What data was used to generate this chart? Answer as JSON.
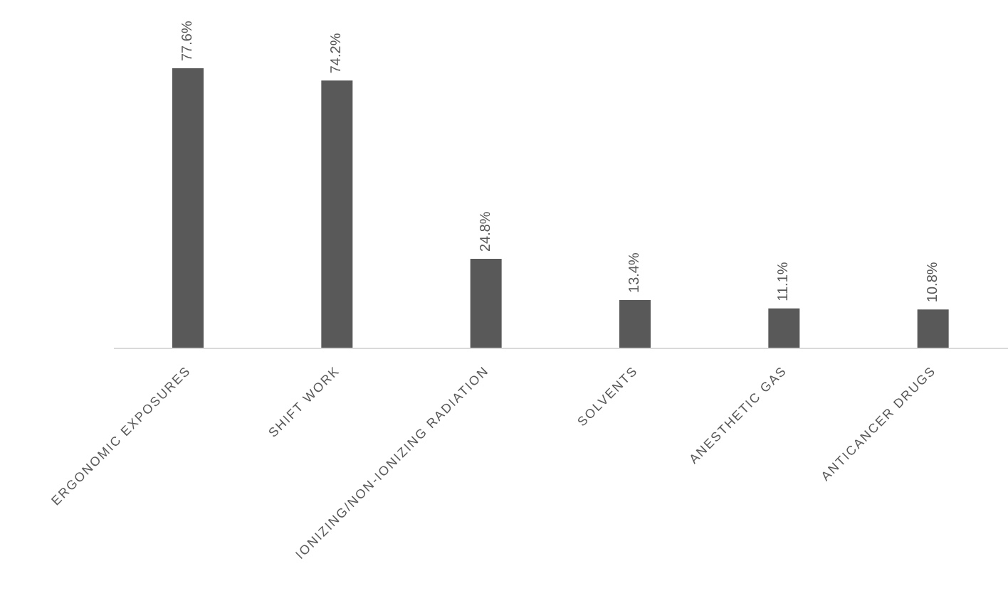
{
  "chart_data": {
    "type": "bar",
    "categories": [
      "ERGONOMIC EXPOSURES",
      "SHIFT WORK",
      "IONIZING/NON-IONIZING RADIATION",
      "SOLVENTS",
      "ANESTHETIC GAS",
      "ANTICANCER DRUGS"
    ],
    "values": [
      77.6,
      74.2,
      24.8,
      13.4,
      11.1,
      10.8
    ],
    "value_labels": [
      "77.6%",
      "74.2%",
      "24.8%",
      "13.4%",
      "11.1%",
      "10.8%"
    ],
    "color": "#595959",
    "tick_labels": "x",
    "grid": false,
    "legend": false
  }
}
